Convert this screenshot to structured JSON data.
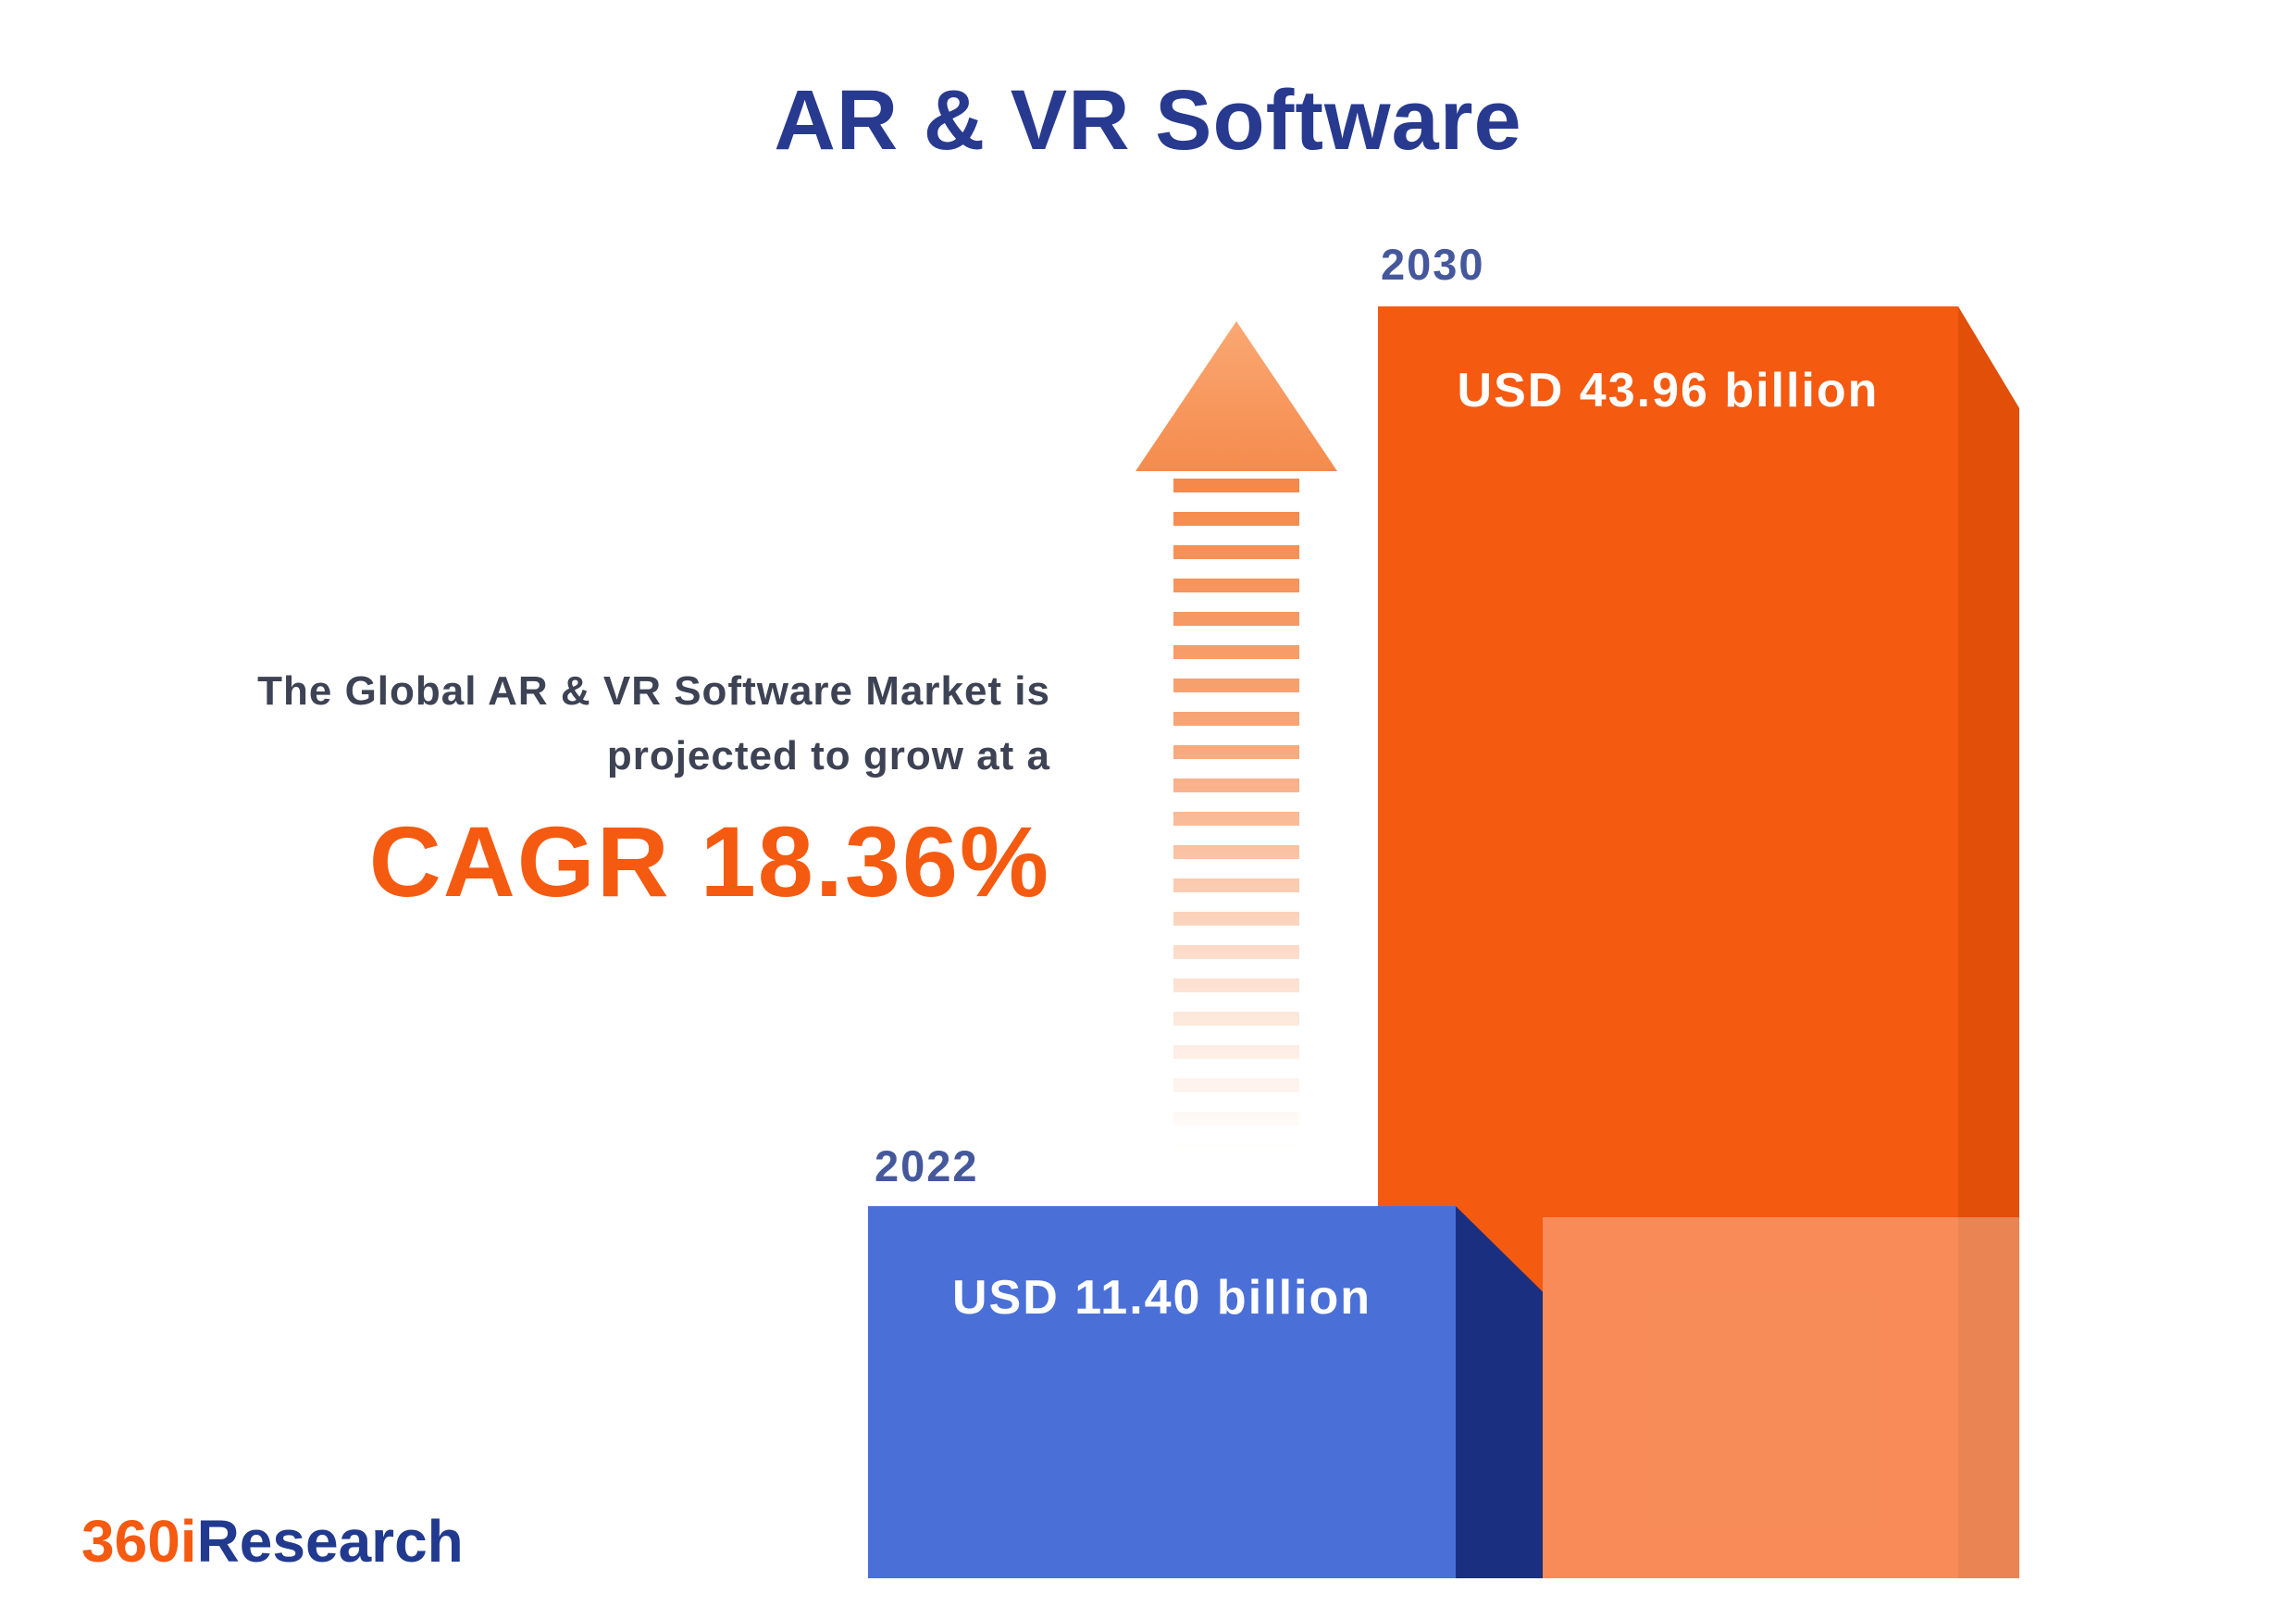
{
  "title": "AR & VR Software",
  "description": {
    "line1": "The Global AR & VR Software Market is",
    "line2": "projected to grow at a",
    "cagr_text": "CAGR 18.36%"
  },
  "logo": {
    "part1": "360i",
    "part2": "Research"
  },
  "chart_data": {
    "type": "bar",
    "title": "AR & VR Software",
    "categories": [
      "2022",
      "2030"
    ],
    "values": [
      11.4,
      43.96
    ],
    "value_labels": [
      "USD 11.40 billion",
      "USD 43.96 billion"
    ],
    "unit": "USD billion",
    "growth": {
      "cagr_percent": 18.36
    },
    "annotations": [
      "The Global AR & VR Software Market is projected to grow at a",
      "CAGR 18.36%"
    ],
    "legend": "none",
    "grid": false,
    "colors": {
      "bar_2022_front": "#4a70d8",
      "bar_2022_side": "#1b2f80",
      "bar_2030_front": "#f55a11",
      "bar_2030_side": "#e14f08",
      "bar_2030_light": "#f88f5d",
      "arrow": "#f5884a",
      "title_text": "#283a8f",
      "year_label_text": "#46589c",
      "description_text": "#3d4254",
      "cagr_text": "#f55a11"
    }
  }
}
